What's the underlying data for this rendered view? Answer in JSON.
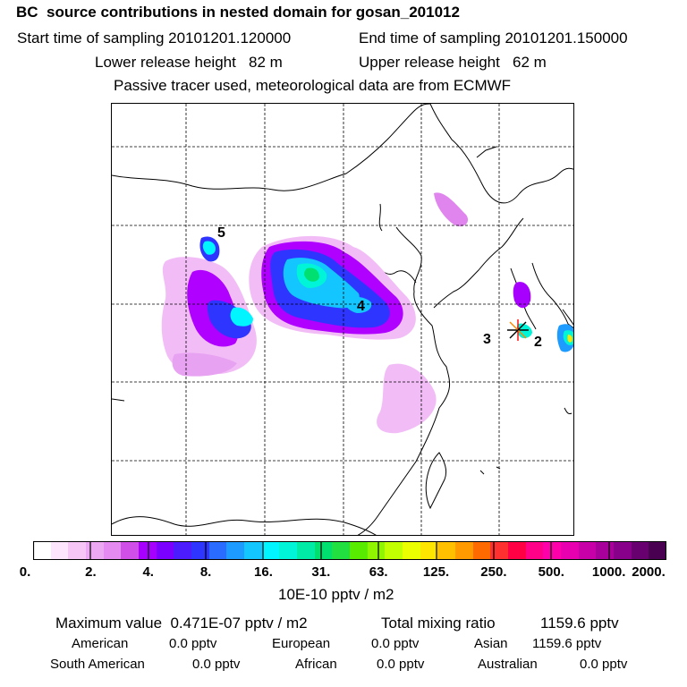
{
  "header": {
    "title": "BC  source contributions in nested domain for gosan_201012",
    "start": "Start time of sampling 20101201.120000",
    "end": "End time of sampling 20101201.150000",
    "lower": "Lower release height   82 m",
    "upper": "Upper release height   62 m",
    "note": "Passive tracer used, meteorological data are from ECMWF"
  },
  "map": {
    "labels": [
      "5",
      "4",
      "3",
      "2"
    ],
    "marker": "release-site-star"
  },
  "colorbar": {
    "ticks": [
      "0.",
      "2.",
      "4.",
      "8.",
      "16.",
      "31.",
      "63.",
      "125.",
      "250.",
      "500.",
      "1000.",
      "2000."
    ],
    "unit": "10E-10 pptv / m2",
    "colors": [
      "#ffffff",
      "#fde6fd",
      "#f6c6f6",
      "#eda8f4",
      "#e58af0",
      "#cf4fe8",
      "#a800ff",
      "#7b00ff",
      "#4c1cff",
      "#2e35ff",
      "#2a6cff",
      "#1e9bff",
      "#13c6ff",
      "#00f5ff",
      "#00f5d8",
      "#00eca6",
      "#00e070",
      "#22e040",
      "#57ec00",
      "#8ff500",
      "#c2ff00",
      "#ecff00",
      "#ffe600",
      "#ffc000",
      "#ff9a00",
      "#ff6a00",
      "#ff3030",
      "#ff0044",
      "#ff0088",
      "#ff00aa",
      "#e800b0",
      "#c800a8",
      "#a8009a",
      "#88008a",
      "#680070",
      "#4a0050"
    ]
  },
  "summary": {
    "max": "Maximum value  0.471E-07 pptv / m2",
    "total_label": "Total mixing ratio",
    "total_value": "1159.6 pptv",
    "rows": [
      {
        "label": "American",
        "value": "0.0 pptv"
      },
      {
        "label": "European",
        "value": "0.0 pptv"
      },
      {
        "label": "Asian",
        "value": "1159.6 pptv"
      },
      {
        "label": "South American",
        "value": "0.0 pptv"
      },
      {
        "label": "African",
        "value": "0.0 pptv"
      },
      {
        "label": "Australian",
        "value": "0.0 pptv"
      }
    ]
  }
}
